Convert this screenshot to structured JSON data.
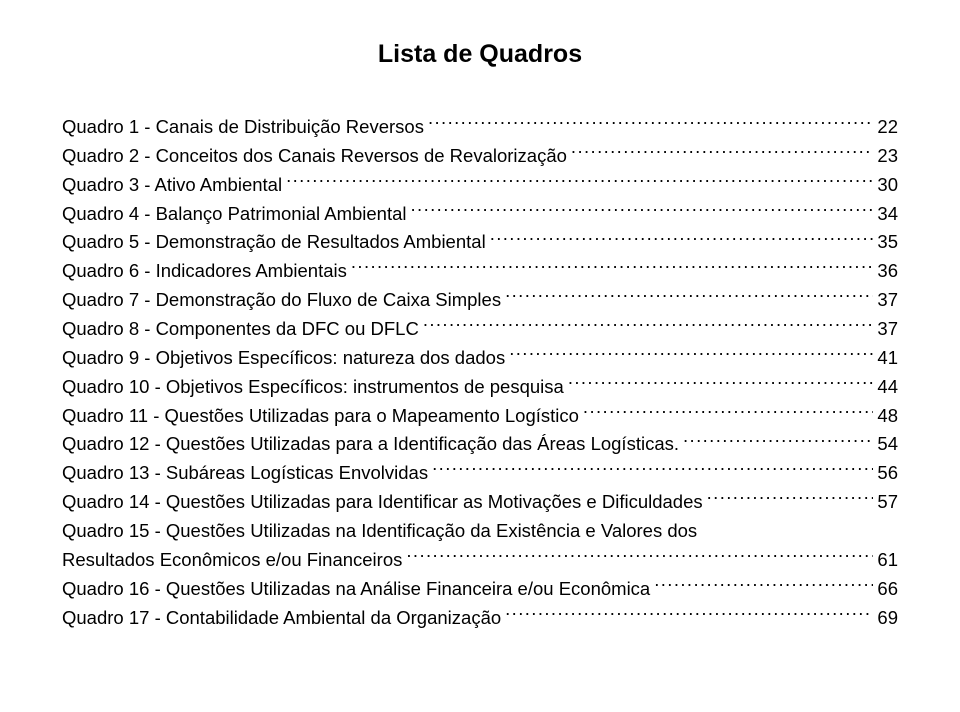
{
  "title": "Lista de Quadros",
  "font": {
    "title_size_pt": 19,
    "body_size_pt": 14,
    "family": "Arial",
    "color": "#000000"
  },
  "background_color": "#ffffff",
  "entries": [
    {
      "label": "Quadro 1 - Canais de Distribuição Reversos",
      "page": "22"
    },
    {
      "label": "Quadro 2 - Conceitos dos Canais Reversos de Revalorização",
      "page": "23"
    },
    {
      "label": "Quadro 3 - Ativo Ambiental",
      "page": "30"
    },
    {
      "label": "Quadro 4 - Balanço Patrimonial Ambiental",
      "page": "34"
    },
    {
      "label": "Quadro 5 - Demonstração de Resultados Ambiental",
      "page": "35"
    },
    {
      "label": "Quadro 6 - Indicadores Ambientais",
      "page": "36"
    },
    {
      "label": "Quadro 7 - Demonstração do Fluxo de Caixa Simples",
      "page": "37"
    },
    {
      "label": "Quadro 8 - Componentes da DFC ou DFLC",
      "page": "37"
    },
    {
      "label": "Quadro 9 - Objetivos Específicos: natureza dos dados",
      "page": "41"
    },
    {
      "label": "Quadro 10 - Objetivos Específicos: instrumentos de pesquisa",
      "page": "44"
    },
    {
      "label": "Quadro 11 - Questões Utilizadas para o Mapeamento Logístico",
      "page": "48"
    },
    {
      "label": "Quadro 12 - Questões Utilizadas para a Identificação das Áreas Logísticas.",
      "page": "54"
    },
    {
      "label": "Quadro 13 - Subáreas Logísticas Envolvidas",
      "page": "56"
    },
    {
      "label": "Quadro 14 - Questões Utilizadas para Identificar as Motivações e Dificuldades",
      "page": "57"
    },
    {
      "label_line1": "Quadro 15 - Questões Utilizadas na Identificação da Existência e Valores dos",
      "label_line2": "Resultados Econômicos e/ou Financeiros",
      "page": "61",
      "wrap": true
    },
    {
      "label": "Quadro 16 - Questões Utilizadas na Análise Financeira e/ou Econômica",
      "page": "66"
    },
    {
      "label": "Quadro 17 - Contabilidade Ambiental da Organização",
      "page": "69"
    }
  ]
}
